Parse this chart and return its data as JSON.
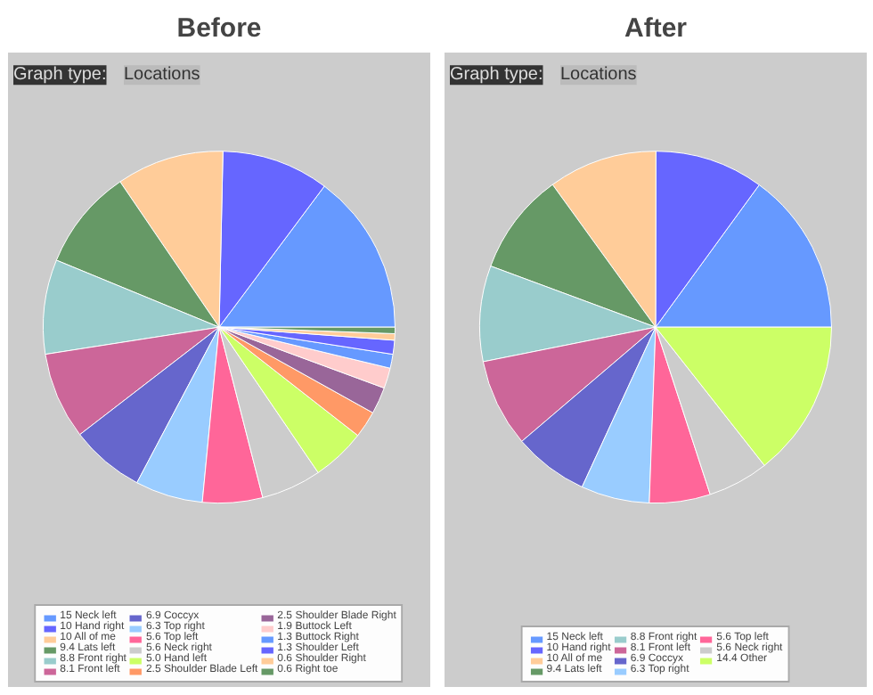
{
  "chart_data": [
    {
      "type": "pie",
      "title": "Before",
      "annotations": [
        "Graph type:",
        "Locations"
      ],
      "legend": "bottom",
      "categories": [
        "15 Neck left",
        "10 Hand right",
        "10 All of me",
        "9.4 Lats left",
        "8.8 Front right",
        "8.1 Front left",
        "6.9 Coccyx",
        "6.3 Top right",
        "5.6 Top left",
        "5.6 Neck right",
        "5.0 Hand left",
        "2.5 Shoulder Blade Left",
        "2.5 Shoulder Blade Right",
        "1.9 Buttock Left",
        "1.3 Buttock Right",
        "1.3 Shoulder Left",
        "0.6 Shoulder Right",
        "0.6 Right toe"
      ],
      "values": [
        15,
        10,
        10,
        9.4,
        8.8,
        8.1,
        6.9,
        6.3,
        5.6,
        5.6,
        5.0,
        2.5,
        2.5,
        1.9,
        1.3,
        1.3,
        0.6,
        0.6
      ],
      "colors": [
        "#6699ff",
        "#6666ff",
        "#ffcc99",
        "#669966",
        "#99cccc",
        "#cc6699",
        "#6666cc",
        "#99ccff",
        "#ff6699",
        "#cccccc",
        "#ccff66",
        "#ff9966",
        "#996699",
        "#ffcccc",
        "#6699ff",
        "#6666ff",
        "#ffcc99",
        "#669966"
      ]
    },
    {
      "type": "pie",
      "title": "After",
      "annotations": [
        "Graph type:",
        "Locations"
      ],
      "legend": "bottom",
      "categories": [
        "15 Neck left",
        "10 Hand right",
        "10 All of me",
        "9.4 Lats left",
        "8.8 Front right",
        "8.1 Front left",
        "6.9 Coccyx",
        "6.3 Top right",
        "5.6 Top left",
        "5.6 Neck right",
        "14.4 Other"
      ],
      "values": [
        15,
        10,
        10,
        9.4,
        8.8,
        8.1,
        6.9,
        6.3,
        5.6,
        5.6,
        14.4
      ],
      "colors": [
        "#6699ff",
        "#6666ff",
        "#ffcc99",
        "#669966",
        "#99cccc",
        "#cc6699",
        "#6666cc",
        "#99ccff",
        "#ff6699",
        "#cccccc",
        "#ccff66"
      ]
    }
  ]
}
